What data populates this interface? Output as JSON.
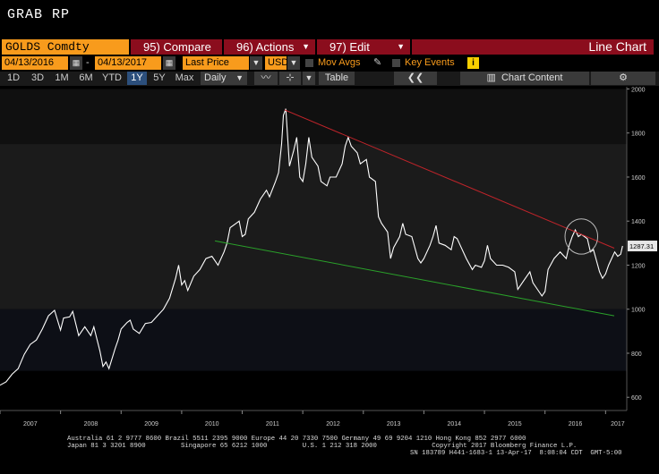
{
  "header": {
    "title": "GRAB RP"
  },
  "toolbar": {
    "security": "GOLDS Comdty",
    "compare_label": "95) Compare",
    "actions_label": "96) Actions",
    "edit_label": "97) Edit",
    "chart_type": "Line Chart",
    "start_date": "04/13/2016",
    "end_date": "04/13/2017",
    "price_field": "Last Price",
    "currency": "USD",
    "mov_avgs_label": "Mov Avgs",
    "key_events_label": "Key Events",
    "info_label": "i"
  },
  "periods": [
    "1D",
    "3D",
    "1M",
    "6M",
    "YTD",
    "1Y",
    "5Y",
    "Max"
  ],
  "active_period": "1Y",
  "frequency": "Daily",
  "table_label": "Table",
  "chart_content_label": "Chart Content",
  "last_value_label": "1287.31",
  "colors": {
    "accent": "#f89b1c",
    "red_button": "#8b0d1d",
    "upper_trend": "#c0242a",
    "lower_trend": "#2aa12a",
    "price_line": "#ffffff"
  },
  "chart_data": {
    "type": "line",
    "title": "",
    "xlabel": "",
    "ylabel": "",
    "xlim": [
      2007.0,
      2017.35
    ],
    "ylim": [
      540,
      2010
    ],
    "yticks": [
      600,
      800,
      1000,
      1200,
      1400,
      1600,
      1800,
      2000
    ],
    "xticks": [
      2007,
      2008,
      2009,
      2010,
      2011,
      2012,
      2013,
      2014,
      2015,
      2016,
      2017
    ],
    "grid": false,
    "legend": "none",
    "series": [
      {
        "values": [
          [
            2007.0,
            655
          ],
          [
            2007.1,
            670
          ],
          [
            2007.2,
            705
          ],
          [
            2007.3,
            730
          ],
          [
            2007.4,
            795
          ],
          [
            2007.5,
            840
          ],
          [
            2007.6,
            860
          ],
          [
            2007.7,
            910
          ],
          [
            2007.8,
            970
          ],
          [
            2007.9,
            995
          ],
          [
            2008.0,
            905
          ],
          [
            2008.05,
            960
          ],
          [
            2008.15,
            965
          ],
          [
            2008.2,
            990
          ],
          [
            2008.3,
            880
          ],
          [
            2008.4,
            920
          ],
          [
            2008.5,
            880
          ],
          [
            2008.55,
            920
          ],
          [
            2008.65,
            810
          ],
          [
            2008.7,
            740
          ],
          [
            2008.75,
            760
          ],
          [
            2008.8,
            730
          ],
          [
            2008.9,
            820
          ],
          [
            2008.95,
            860
          ],
          [
            2009.0,
            910
          ],
          [
            2009.1,
            940
          ],
          [
            2009.15,
            950
          ],
          [
            2009.2,
            910
          ],
          [
            2009.3,
            890
          ],
          [
            2009.4,
            935
          ],
          [
            2009.5,
            940
          ],
          [
            2009.6,
            970
          ],
          [
            2009.7,
            1000
          ],
          [
            2009.8,
            1050
          ],
          [
            2009.9,
            1140
          ],
          [
            2009.95,
            1200
          ],
          [
            2010.0,
            1110
          ],
          [
            2010.05,
            1130
          ],
          [
            2010.1,
            1085
          ],
          [
            2010.2,
            1150
          ],
          [
            2010.3,
            1180
          ],
          [
            2010.4,
            1230
          ],
          [
            2010.5,
            1240
          ],
          [
            2010.6,
            1200
          ],
          [
            2010.7,
            1260
          ],
          [
            2010.75,
            1300
          ],
          [
            2010.8,
            1370
          ],
          [
            2010.9,
            1390
          ],
          [
            2010.95,
            1400
          ],
          [
            2011.0,
            1330
          ],
          [
            2011.05,
            1340
          ],
          [
            2011.1,
            1410
          ],
          [
            2011.2,
            1440
          ],
          [
            2011.3,
            1500
          ],
          [
            2011.35,
            1520
          ],
          [
            2011.4,
            1540
          ],
          [
            2011.45,
            1510
          ],
          [
            2011.55,
            1580
          ],
          [
            2011.6,
            1620
          ],
          [
            2011.65,
            1750
          ],
          [
            2011.68,
            1880
          ],
          [
            2011.72,
            1910
          ],
          [
            2011.78,
            1650
          ],
          [
            2011.85,
            1720
          ],
          [
            2011.9,
            1780
          ],
          [
            2011.95,
            1600
          ],
          [
            2012.0,
            1580
          ],
          [
            2012.05,
            1660
          ],
          [
            2012.1,
            1780
          ],
          [
            2012.15,
            1690
          ],
          [
            2012.25,
            1650
          ],
          [
            2012.3,
            1580
          ],
          [
            2012.4,
            1560
          ],
          [
            2012.45,
            1600
          ],
          [
            2012.55,
            1600
          ],
          [
            2012.65,
            1660
          ],
          [
            2012.7,
            1740
          ],
          [
            2012.75,
            1780
          ],
          [
            2012.8,
            1740
          ],
          [
            2012.9,
            1710
          ],
          [
            2012.95,
            1660
          ],
          [
            2013.0,
            1670
          ],
          [
            2013.05,
            1680
          ],
          [
            2013.1,
            1600
          ],
          [
            2013.2,
            1580
          ],
          [
            2013.25,
            1420
          ],
          [
            2013.3,
            1390
          ],
          [
            2013.4,
            1350
          ],
          [
            2013.45,
            1230
          ],
          [
            2013.5,
            1280
          ],
          [
            2013.6,
            1330
          ],
          [
            2013.65,
            1390
          ],
          [
            2013.7,
            1340
          ],
          [
            2013.8,
            1330
          ],
          [
            2013.9,
            1230
          ],
          [
            2013.95,
            1210
          ],
          [
            2014.0,
            1230
          ],
          [
            2014.1,
            1290
          ],
          [
            2014.15,
            1330
          ],
          [
            2014.2,
            1380
          ],
          [
            2014.25,
            1300
          ],
          [
            2014.35,
            1290
          ],
          [
            2014.45,
            1270
          ],
          [
            2014.5,
            1330
          ],
          [
            2014.55,
            1320
          ],
          [
            2014.6,
            1290
          ],
          [
            2014.7,
            1230
          ],
          [
            2014.8,
            1180
          ],
          [
            2014.85,
            1200
          ],
          [
            2014.95,
            1190
          ],
          [
            2015.0,
            1220
          ],
          [
            2015.05,
            1290
          ],
          [
            2015.1,
            1230
          ],
          [
            2015.2,
            1200
          ],
          [
            2015.3,
            1200
          ],
          [
            2015.4,
            1190
          ],
          [
            2015.5,
            1170
          ],
          [
            2015.55,
            1090
          ],
          [
            2015.65,
            1130
          ],
          [
            2015.75,
            1170
          ],
          [
            2015.8,
            1120
          ],
          [
            2015.9,
            1080
          ],
          [
            2015.95,
            1060
          ],
          [
            2016.0,
            1080
          ],
          [
            2016.05,
            1180
          ],
          [
            2016.15,
            1230
          ],
          [
            2016.25,
            1260
          ],
          [
            2016.35,
            1230
          ],
          [
            2016.4,
            1290
          ],
          [
            2016.45,
            1330
          ],
          [
            2016.5,
            1360
          ],
          [
            2016.55,
            1330
          ],
          [
            2016.6,
            1340
          ],
          [
            2016.7,
            1320
          ],
          [
            2016.75,
            1260
          ],
          [
            2016.8,
            1270
          ],
          [
            2016.85,
            1220
          ],
          [
            2016.9,
            1170
          ],
          [
            2016.95,
            1140
          ],
          [
            2017.0,
            1160
          ],
          [
            2017.05,
            1200
          ],
          [
            2017.1,
            1230
          ],
          [
            2017.15,
            1260
          ],
          [
            2017.2,
            1240
          ],
          [
            2017.25,
            1250
          ],
          [
            2017.28,
            1287
          ]
        ]
      }
    ],
    "trendlines": [
      {
        "points": [
          [
            2011.7,
            1905
          ],
          [
            2017.35,
            1277
          ]
        ]
      },
      {
        "points": [
          [
            2010.55,
            1310
          ],
          [
            2017.35,
            970
          ]
        ]
      }
    ],
    "annotation_circle": {
      "center": [
        2016.6,
        1330
      ],
      "rx": 0.27,
      "ry": 80
    }
  },
  "footer": {
    "line1": "Australia 61 2 9777 8600 Brazil 5511 2395 9000 Europe 44 20 7330 7500 Germany 49 69 9204 1210 Hong Kong 852 2977 6000",
    "line2": "Japan 81 3 3201 8900         Singapore 65 6212 1000         U.S. 1 212 318 2000              Copyright 2017 Bloomberg Finance L.P.",
    "line3": "SN 183789 H441-1683-1 13-Apr-17  8:08:04 CDT  GMT-5:00"
  }
}
